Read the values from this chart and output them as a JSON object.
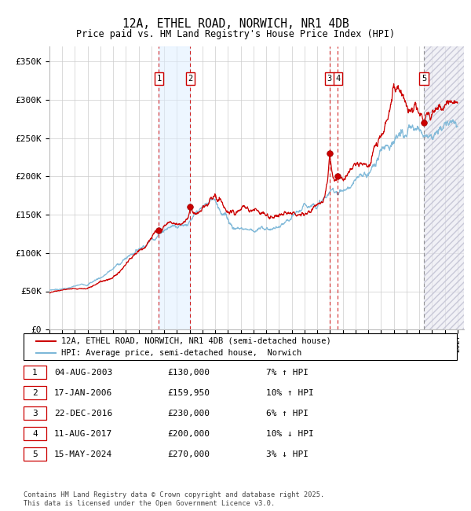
{
  "title": "12A, ETHEL ROAD, NORWICH, NR1 4DB",
  "subtitle": "Price paid vs. HM Land Registry's House Price Index (HPI)",
  "ylabel_ticks": [
    "£0",
    "£50K",
    "£100K",
    "£150K",
    "£200K",
    "£250K",
    "£300K",
    "£350K"
  ],
  "ytick_values": [
    0,
    50000,
    100000,
    150000,
    200000,
    250000,
    300000,
    350000
  ],
  "ylim": [
    0,
    370000
  ],
  "xlim_start": 1995.0,
  "xlim_end": 2027.5,
  "transactions": [
    {
      "id": 1,
      "date": "04-AUG-2003",
      "price": 130000,
      "year": 2003.58,
      "pct": "7%",
      "dir": "↑"
    },
    {
      "id": 2,
      "date": "17-JAN-2006",
      "price": 159950,
      "year": 2006.04,
      "pct": "10%",
      "dir": "↑"
    },
    {
      "id": 3,
      "date": "22-DEC-2016",
      "price": 230000,
      "year": 2016.97,
      "pct": "6%",
      "dir": "↑"
    },
    {
      "id": 4,
      "date": "11-AUG-2017",
      "price": 200000,
      "year": 2017.61,
      "pct": "10%",
      "dir": "↓"
    },
    {
      "id": 5,
      "date": "15-MAY-2024",
      "price": 270000,
      "year": 2024.37,
      "pct": "3%",
      "dir": "↓"
    }
  ],
  "legend_entry1": "12A, ETHEL ROAD, NORWICH, NR1 4DB (semi-detached house)",
  "legend_entry2": "HPI: Average price, semi-detached house,  Norwich",
  "footer": "Contains HM Land Registry data © Crown copyright and database right 2025.\nThis data is licensed under the Open Government Licence v3.0.",
  "hpi_color": "#7db8d8",
  "price_color": "#cc0000",
  "bg_color": "#ffffff",
  "grid_color": "#cccccc",
  "shade_color": "#ddeeff",
  "future_shade": "#e8e8f0"
}
